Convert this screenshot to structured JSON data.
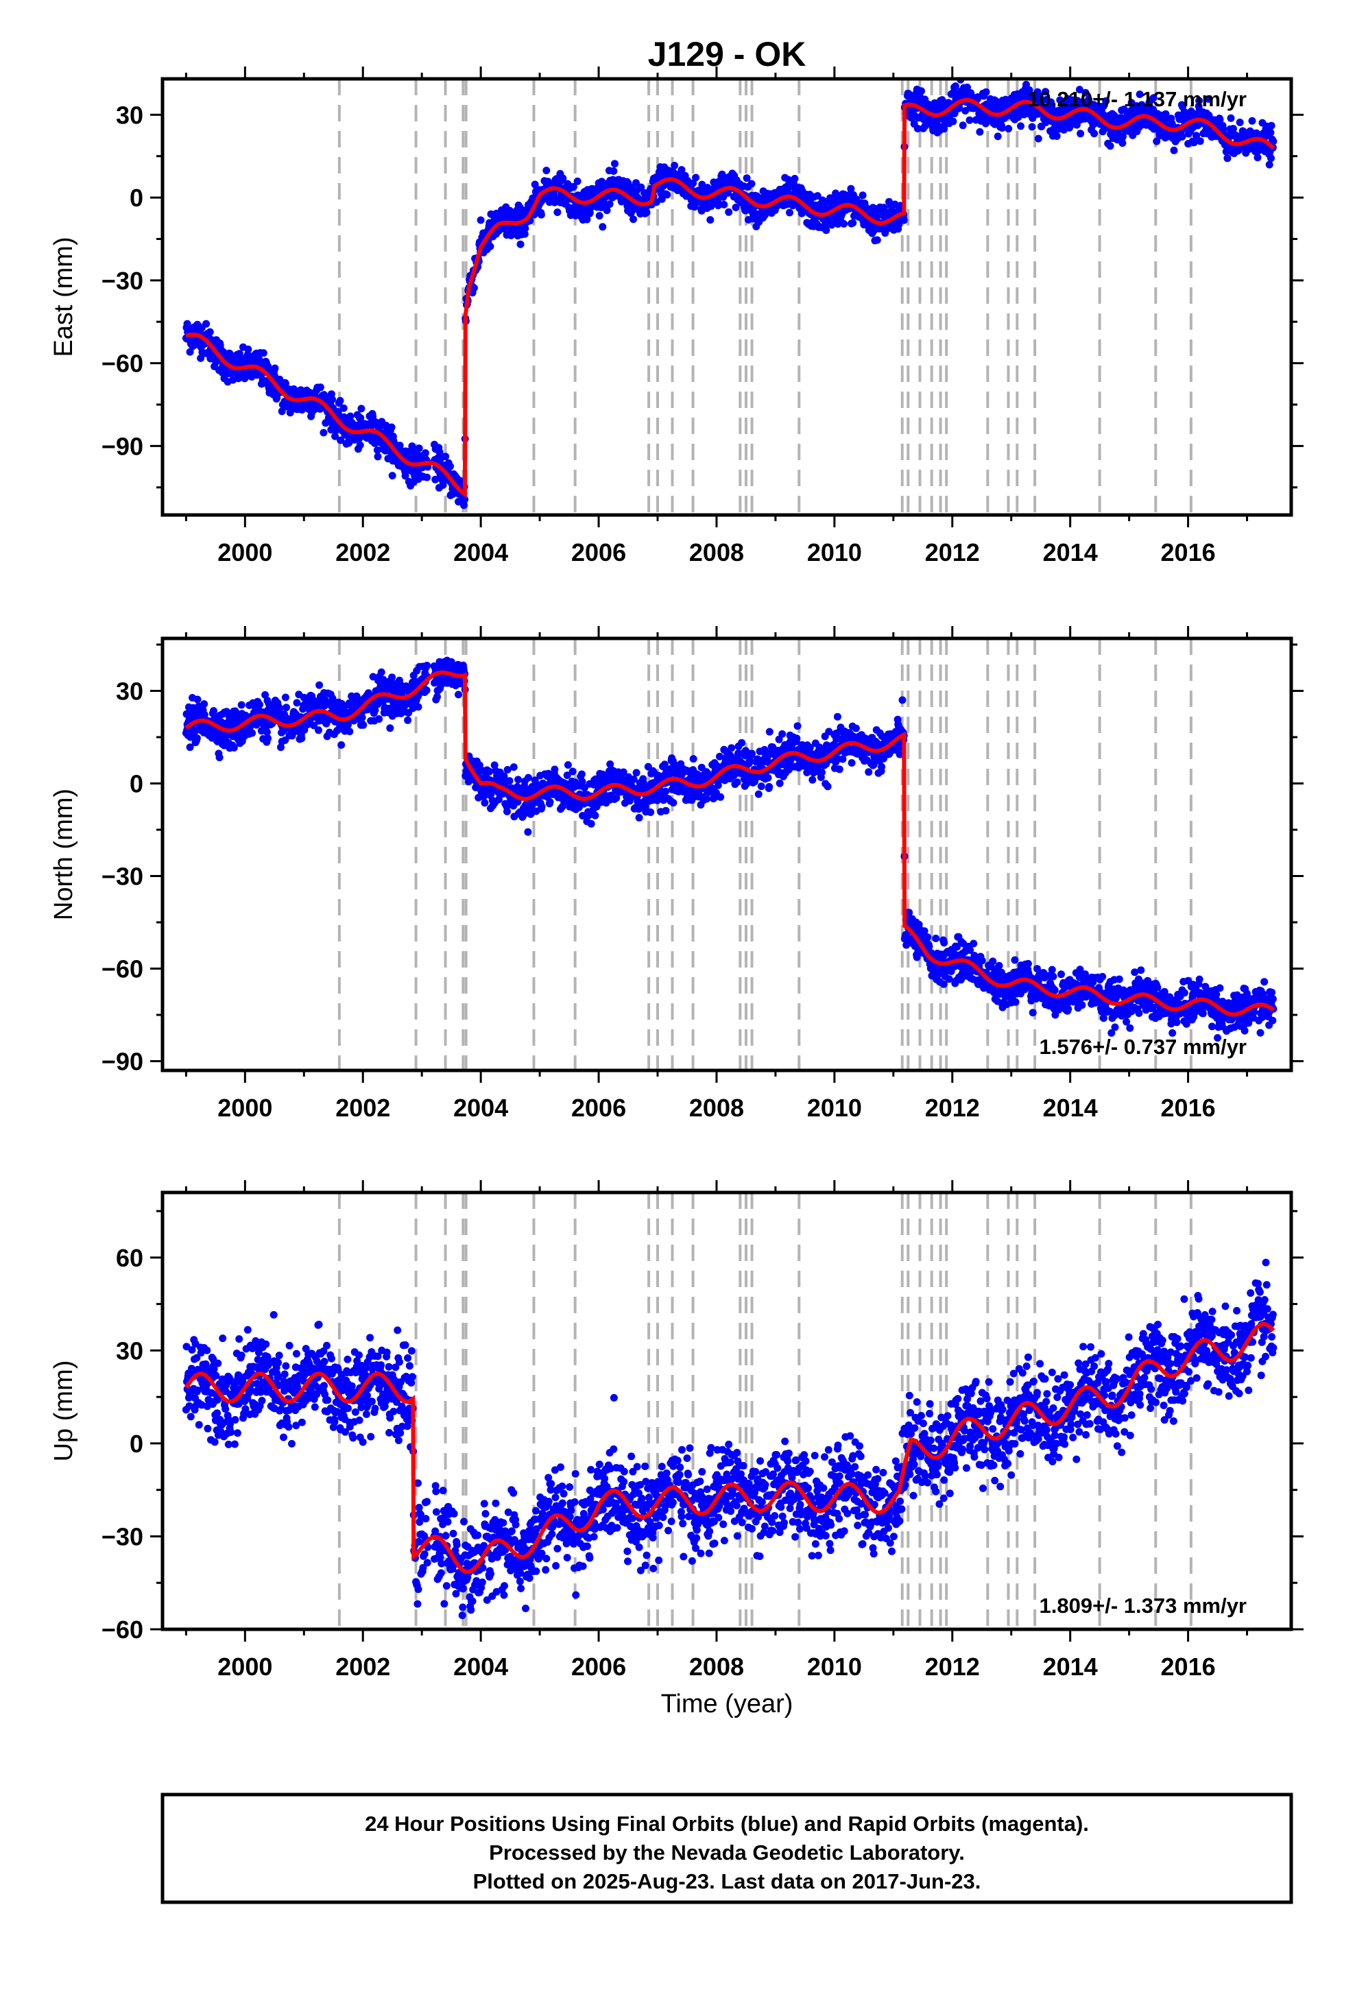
{
  "title": "J129 - OK",
  "xlabel": "Time (year)",
  "footer": [
    "24 Hour Positions Using Final Orbits (blue) and Rapid Orbits (magenta).",
    "Processed by the Nevada Geodetic Laboratory.",
    "Plotted on 2025-Aug-23. Last data on 2017-Jun-23."
  ],
  "colors": {
    "data": "#0000ff",
    "model": "#ff0000",
    "events": "#b4b4b4",
    "frame": "#000000"
  },
  "chart_data": [
    {
      "type": "scatter",
      "ylabel": "East (mm)",
      "rate_label": "10.210+/- 1.137 mm/yr",
      "xlim": [
        1998.6,
        2017.75
      ],
      "ylim": [
        -115,
        43
      ],
      "xticks": [
        2000,
        2002,
        2004,
        2006,
        2008,
        2010,
        2012,
        2014,
        2016
      ],
      "yticks": [
        -90,
        -60,
        -30,
        0,
        30
      ],
      "ytick_labels": [
        "−90",
        "−60",
        "−30",
        "0",
        "30"
      ],
      "event_lines": [
        2001.6,
        2002.9,
        2003.4,
        2003.7,
        2003.75,
        2004.9,
        2005.6,
        2006.85,
        2007.0,
        2007.25,
        2007.6,
        2008.4,
        2008.5,
        2008.6,
        2009.4,
        2011.15,
        2011.25,
        2011.45,
        2011.65,
        2011.8,
        2011.9,
        2012.6,
        2012.95,
        2013.1,
        2013.4,
        2014.5,
        2015.45,
        2016.05
      ],
      "series": [
        {
          "name": "24 Hour Positions",
          "model": [
            [
              1999.0,
              -50
            ],
            [
              2001.6,
              -80
            ],
            [
              2003.73,
              -105
            ],
            [
              2003.74,
              -40
            ],
            [
              2003.8,
              -30
            ],
            [
              2004.0,
              -18
            ],
            [
              2004.3,
              -12
            ],
            [
              2004.8,
              -5
            ],
            [
              2005.0,
              1
            ],
            [
              2006.9,
              0
            ],
            [
              2006.95,
              5
            ],
            [
              2009.5,
              -3
            ],
            [
              2011.18,
              -8
            ],
            [
              2011.19,
              31
            ],
            [
              2012.0,
              33
            ],
            [
              2013.5,
              32
            ],
            [
              2015.0,
              27
            ],
            [
              2016.0,
              27
            ],
            [
              2016.5,
              24
            ],
            [
              2017.45,
              17
            ]
          ],
          "seasonal_amplitude": 2.5,
          "noise": 3
        }
      ]
    },
    {
      "type": "scatter",
      "ylabel": "North (mm)",
      "rate_label": "1.576+/- 0.737 mm/yr",
      "xlim": [
        1998.6,
        2017.75
      ],
      "ylim": [
        -93,
        47
      ],
      "xticks": [
        2000,
        2002,
        2004,
        2006,
        2008,
        2010,
        2012,
        2014,
        2016
      ],
      "yticks": [
        -90,
        -60,
        -30,
        0,
        30
      ],
      "ytick_labels": [
        "−90",
        "−60",
        "−30",
        "0",
        "30"
      ],
      "event_lines": [
        2001.6,
        2002.9,
        2003.4,
        2003.7,
        2003.75,
        2004.9,
        2005.6,
        2006.85,
        2007.0,
        2007.25,
        2007.6,
        2008.4,
        2008.5,
        2008.6,
        2009.4,
        2011.15,
        2011.25,
        2011.45,
        2011.65,
        2011.8,
        2011.9,
        2012.6,
        2012.95,
        2013.1,
        2013.4,
        2014.5,
        2015.45,
        2016.05
      ],
      "series": [
        {
          "name": "24 Hour Positions",
          "model": [
            [
              1999.0,
              18
            ],
            [
              2001.6,
              22
            ],
            [
              2003.73,
              37
            ],
            [
              2003.74,
              10
            ],
            [
              2004.0,
              0
            ],
            [
              2004.3,
              -3
            ],
            [
              2006.0,
              -3
            ],
            [
              2007.5,
              0
            ],
            [
              2009.0,
              7
            ],
            [
              2011.18,
              14
            ],
            [
              2011.19,
              -48
            ],
            [
              2011.6,
              -55
            ],
            [
              2013.0,
              -65
            ],
            [
              2015.0,
              -70
            ],
            [
              2017.45,
              -74
            ]
          ],
          "seasonal_amplitude": 2,
          "noise": 3.2
        }
      ]
    },
    {
      "type": "scatter",
      "ylabel": "Up (mm)",
      "rate_label": "1.809+/- 1.373 mm/yr",
      "xlim": [
        1998.6,
        2017.75
      ],
      "ylim": [
        -60,
        81
      ],
      "xticks": [
        2000,
        2002,
        2004,
        2006,
        2008,
        2010,
        2012,
        2014,
        2016
      ],
      "yticks": [
        -60,
        -30,
        0,
        30,
        60
      ],
      "ytick_labels": [
        "−60",
        "−30",
        "0",
        "30",
        "60"
      ],
      "event_lines": [
        2001.6,
        2002.9,
        2003.4,
        2003.7,
        2003.75,
        2004.9,
        2005.6,
        2006.85,
        2007.0,
        2007.25,
        2007.6,
        2008.4,
        2008.5,
        2008.6,
        2009.4,
        2011.15,
        2011.25,
        2011.45,
        2011.65,
        2011.8,
        2011.9,
        2012.6,
        2012.95,
        2013.1,
        2013.4,
        2014.5,
        2015.45,
        2016.05
      ],
      "series": [
        {
          "name": "24 Hour Positions",
          "model": [
            [
              1999.0,
              18
            ],
            [
              2002.85,
              18
            ],
            [
              2002.86,
              -33
            ],
            [
              2004.0,
              -38
            ],
            [
              2005.0,
              -30
            ],
            [
              2005.6,
              -25
            ],
            [
              2006.0,
              -20
            ],
            [
              2009.0,
              -17
            ],
            [
              2011.1,
              -18
            ],
            [
              2011.3,
              -3
            ],
            [
              2012.5,
              5
            ],
            [
              2014.0,
              12
            ],
            [
              2015.0,
              18
            ],
            [
              2015.5,
              25
            ],
            [
              2016.5,
              30
            ],
            [
              2017.45,
              35
            ]
          ],
          "seasonal_amplitude": 4.5,
          "noise": 7
        }
      ]
    }
  ]
}
